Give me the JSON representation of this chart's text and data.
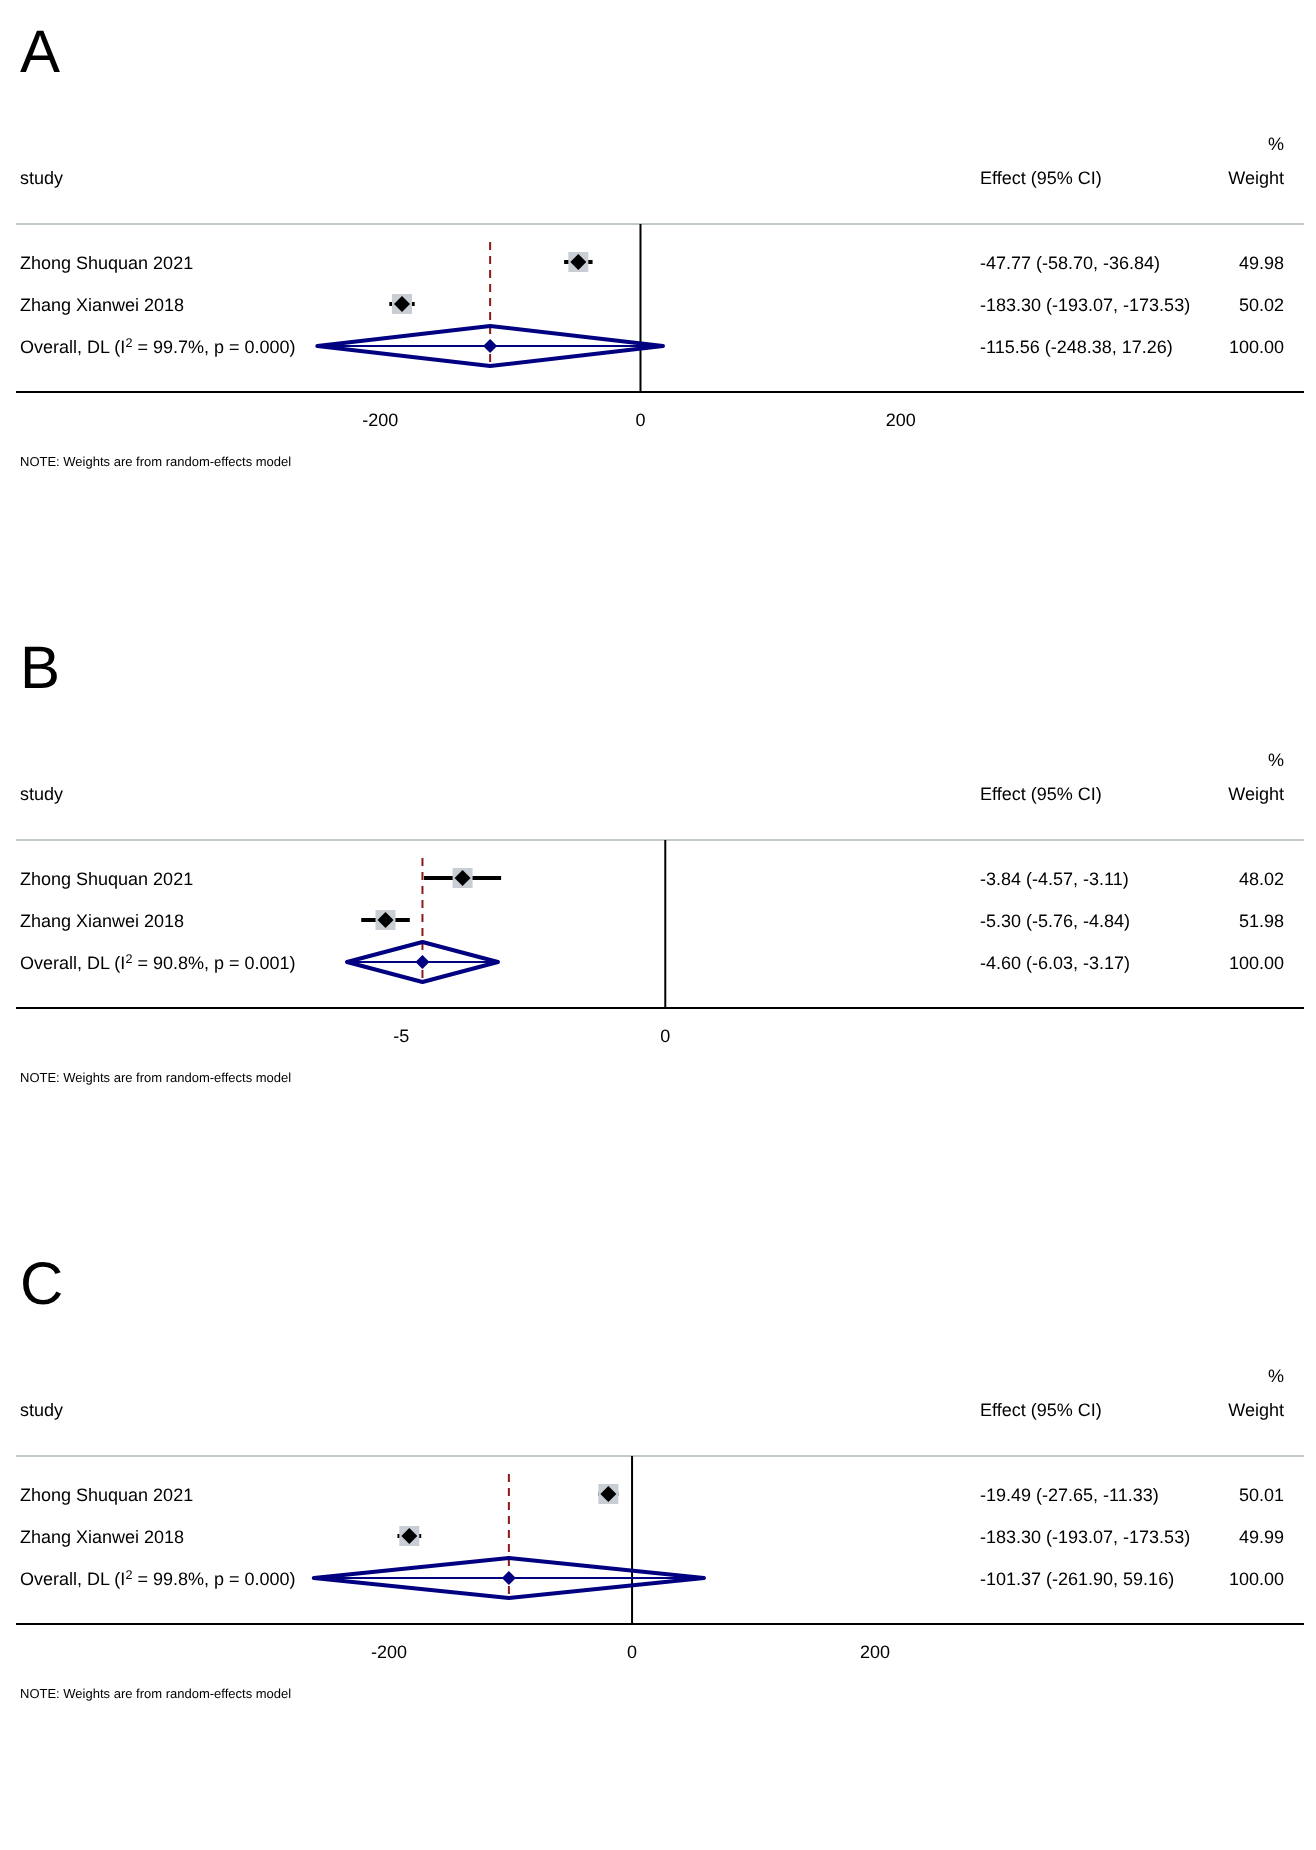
{
  "chart_data": [
    {
      "type": "scatter",
      "orientation": "horizontal",
      "title": "A",
      "categories": [
        "Zhong Shuquan 2021",
        "Zhang Xianwei 2018",
        "Overall, DL (I$^{2}$ = 99.7%, p = 0.000)"
      ],
      "xlim": [
        -480,
        510
      ],
      "xticks": [
        -200,
        0,
        200
      ],
      "grid": false,
      "series": [
        {
          "type": "scatter",
          "marker": "diamond",
          "color": "#000000",
          "values": [
            -47.77,
            -183.3,
            null
          ],
          "errors": [
            [
              -58.7,
              -36.84
            ],
            [
              -193.07,
              -173.53
            ],
            null
          ]
        },
        {
          "type": "scatter",
          "marker": "diamond",
          "color": "#000080",
          "values": [
            null,
            null,
            -115.56
          ],
          "errors": [
            null,
            null,
            [
              -248.38,
              17.26
            ]
          ]
        }
      ],
      "ref_lines": [
        {
          "axis": "x",
          "value": 0,
          "color": "#000000",
          "line_style": "solid"
        },
        {
          "axis": "x",
          "value": -115.56,
          "color": "#8b1a1a",
          "line_style": "dashed"
        }
      ],
      "annotations": [
        "study",
        "Effect (95% CI)",
        "%",
        "Weight",
        "NOTE: Weights are from random-effects model",
        "49.98",
        "50.02",
        "100.00",
        "-47.77 (-58.70, -36.84)",
        "-183.30 (-193.07, -173.53)",
        "-115.56 (-248.38, 17.26)"
      ]
    },
    {
      "type": "scatter",
      "orientation": "horizontal",
      "title": "B",
      "categories": [
        "Zhong Shuquan 2021",
        "Zhang Xianwei 2018",
        "Overall, DL (I$^{2}$ = 90.8%, p = 0.001)"
      ],
      "xlim": [
        -12.3,
        12.1
      ],
      "xticks": [
        -5,
        0
      ],
      "grid": false,
      "series": [
        {
          "type": "scatter",
          "marker": "diamond",
          "color": "#000000",
          "values": [
            -3.84,
            -5.3,
            null
          ],
          "errors": [
            [
              -4.57,
              -3.11
            ],
            [
              -5.76,
              -4.84
            ],
            null
          ]
        },
        {
          "type": "scatter",
          "marker": "diamond",
          "color": "#000080",
          "values": [
            null,
            null,
            -4.6
          ],
          "errors": [
            null,
            null,
            [
              -6.03,
              -3.17
            ]
          ]
        }
      ],
      "ref_lines": [
        {
          "axis": "x",
          "value": 0,
          "color": "#000000",
          "line_style": "solid"
        },
        {
          "axis": "x",
          "value": -4.6,
          "color": "#8b1a1a",
          "line_style": "dashed"
        }
      ],
      "annotations": [
        "study",
        "Effect (95% CI)",
        "%",
        "Weight",
        "NOTE: Weights are from random-effects model",
        "48.02",
        "51.98",
        "100.00",
        "-3.84 (-4.57, -3.11)",
        "-5.30 (-5.76, -4.84)",
        "-4.60 (-6.03, -3.17)"
      ]
    },
    {
      "type": "scatter",
      "orientation": "horizontal",
      "title": "C",
      "categories": [
        "Zhong Shuquan 2021",
        "Zhang Xianwei 2018",
        "Overall, DL (I$^{2}$ = 99.8%, p = 0.000)"
      ],
      "xlim": [
        -507,
        553
      ],
      "xticks": [
        -200,
        0,
        200
      ],
      "grid": false,
      "series": [
        {
          "type": "scatter",
          "marker": "diamond",
          "color": "#000000",
          "values": [
            -19.49,
            -183.3,
            null
          ],
          "errors": [
            [
              -27.65,
              -11.33
            ],
            [
              -193.07,
              -173.53
            ],
            null
          ]
        },
        {
          "type": "scatter",
          "marker": "diamond",
          "color": "#000080",
          "values": [
            null,
            null,
            -101.37
          ],
          "errors": [
            null,
            null,
            [
              -261.9,
              59.16
            ]
          ]
        }
      ],
      "ref_lines": [
        {
          "axis": "x",
          "value": 0,
          "color": "#000000",
          "line_style": "solid"
        },
        {
          "axis": "x",
          "value": -101.37,
          "color": "#8b1a1a",
          "line_style": "dashed"
        }
      ],
      "annotations": [
        "study",
        "Effect (95% CI)",
        "%",
        "Weight",
        "NOTE: Weights are from random-effects model",
        "50.01",
        "49.99",
        "100.00",
        "-19.49 (-27.65, -11.33)",
        "-183.30 (-193.07, -173.53)",
        "-101.37 (-261.90, 59.16)"
      ]
    }
  ]
}
